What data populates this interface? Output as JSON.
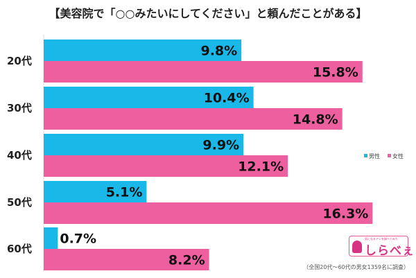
{
  "chart_data": {
    "type": "bar",
    "orientation": "horizontal",
    "title": "【美容院で「○○みたいにしてください」と頼んだことがある】",
    "categories": [
      "20代",
      "30代",
      "40代",
      "50代",
      "60代"
    ],
    "series": [
      {
        "name": "男性",
        "color": "#1ab8e8",
        "values": [
          9.8,
          10.4,
          9.9,
          5.1,
          0.7
        ],
        "labels": [
          "9.8%",
          "10.4%",
          "9.9%",
          "5.1%",
          "0.7%"
        ]
      },
      {
        "name": "女性",
        "color": "#ee5fa0",
        "values": [
          15.8,
          14.8,
          12.1,
          16.3,
          8.2
        ],
        "labels": [
          "15.8%",
          "14.8%",
          "12.1%",
          "16.3%",
          "8.2%"
        ]
      }
    ],
    "xlim": [
      0,
      20
    ],
    "grid": false,
    "legend": "right"
  },
  "logo": {
    "text": "しらべぇ",
    "tagline": "気になるアレを調べてみた"
  },
  "footnote": "（全国20代〜60代の男女1359名に調査）"
}
